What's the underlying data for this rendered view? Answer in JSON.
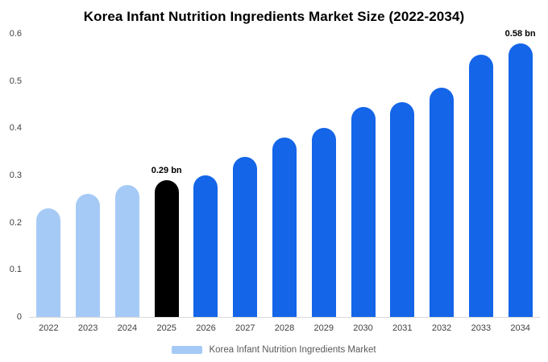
{
  "title": "Korea Infant Nutrition Ingredients Market Size (2022-2034)",
  "legend": {
    "label": "Korea Infant Nutrition Ingredients Market",
    "swatch_color": "#a6caf6"
  },
  "colors": {
    "light_blue": "#a6caf6",
    "primary_blue": "#1465e8",
    "highlight_black": "#000000"
  },
  "chart_data": {
    "type": "bar",
    "title": "Korea Infant Nutrition Ingredients Market Size (2022-2034)",
    "unit": "bn",
    "categories": [
      "2022",
      "2023",
      "2024",
      "2025",
      "2026",
      "2027",
      "2028",
      "2029",
      "2030",
      "2031",
      "2032",
      "2033",
      "2034"
    ],
    "values": [
      0.23,
      0.26,
      0.28,
      0.29,
      0.3,
      0.34,
      0.38,
      0.4,
      0.445,
      0.455,
      0.485,
      0.555,
      0.58
    ],
    "bar_colors": [
      "#a6caf6",
      "#a6caf6",
      "#a6caf6",
      "#000000",
      "#1465e8",
      "#1465e8",
      "#1465e8",
      "#1465e8",
      "#1465e8",
      "#1465e8",
      "#1465e8",
      "#1465e8",
      "#1465e8"
    ],
    "annotations": [
      {
        "category": "2025",
        "text": "0.29 bn"
      },
      {
        "category": "2034",
        "text": "0.58 bn"
      }
    ],
    "xlabel": "",
    "ylabel": "",
    "ylim": [
      0,
      0.6
    ],
    "yticks": [
      "0",
      "0.1",
      "0.2",
      "0.3",
      "0.4",
      "0.5",
      "0.6"
    ],
    "grid": false,
    "legend_position": "bottom",
    "legend_entries": [
      "Korea Infant Nutrition Ingredients Market"
    ]
  }
}
